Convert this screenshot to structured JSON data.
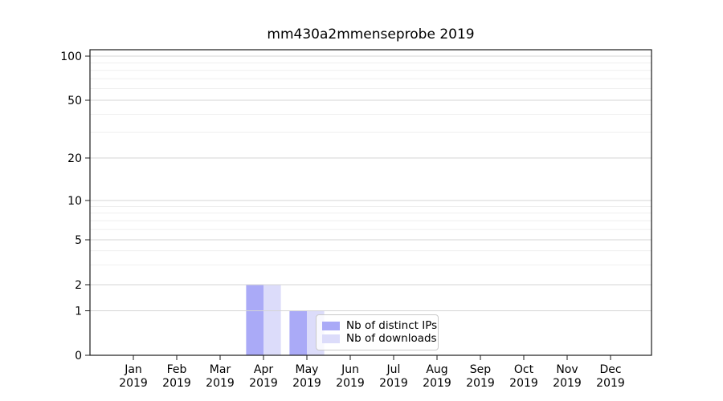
{
  "title": "mm430a2mmenseprobe 2019",
  "chart_data": {
    "type": "bar",
    "title": "mm430a2mmenseprobe 2019",
    "categories": [
      "Jan 2019",
      "Feb 2019",
      "Mar 2019",
      "Apr 2019",
      "May 2019",
      "Jun 2019",
      "Jul 2019",
      "Aug 2019",
      "Sep 2019",
      "Oct 2019",
      "Nov 2019",
      "Dec 2019"
    ],
    "series": [
      {
        "name": "Nb of distinct IPs",
        "color": "#aaaaf7",
        "values": [
          0,
          0,
          0,
          2,
          1,
          0,
          0,
          0,
          0,
          0,
          0,
          0
        ]
      },
      {
        "name": "Nb of downloads",
        "color": "#dcdcfa",
        "values": [
          0,
          0,
          0,
          2,
          1,
          0,
          0,
          0,
          0,
          0,
          0,
          0
        ]
      }
    ],
    "y_ticks": [
      0,
      1,
      2,
      5,
      10,
      20,
      50,
      100
    ],
    "y_scale": "symlog",
    "ylim": [
      0,
      110
    ],
    "xlabel": "",
    "ylabel": "",
    "grid": "horizontal major and minor, drawn above bars",
    "legend_position": "inside, lower middle-right"
  },
  "colors": {
    "grid_major": "#d4d4d4",
    "grid_minor": "#efefef",
    "spine": "#1a1a1a",
    "background": "#ffffff",
    "tick_label": "#000000"
  }
}
